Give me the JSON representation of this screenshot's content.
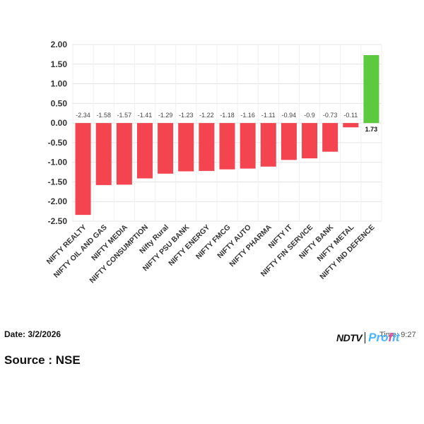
{
  "chart_data": {
    "type": "bar",
    "categories": [
      "NIFTY REALTY",
      "NIFTY OIL AND GAS",
      "NIFTY MEDIA",
      "NIFTY CONSUMPTION",
      "Nifty Rural",
      "NIFTY PSU BANK",
      "NIFTY ENERGY",
      "NIFTY FMCG",
      "NIFTY AUTO",
      "NIFTY PHARMA",
      "NIFTY IT",
      "NIFTY FIN SERVICE",
      "NIFTY BANK",
      "NIFTY METAL",
      "NIFTY IND DEFENCE"
    ],
    "values": [
      -2.34,
      -1.58,
      -1.57,
      -1.41,
      -1.29,
      -1.23,
      -1.22,
      -1.18,
      -1.16,
      -1.11,
      -0.94,
      -0.9,
      -0.73,
      -0.11,
      1.73
    ],
    "data_labels": [
      "-2.34",
      "-1.58",
      "-1.57",
      "-1.41",
      "-1.29",
      "-1.23",
      "-1.22",
      "-1.18",
      "-1.16",
      "-1.11",
      "-0.94",
      "-0.9",
      "-0.73",
      "-0.11",
      "1.73"
    ],
    "yticks": [
      "2.00",
      "1.50",
      "1.00",
      "0.50",
      "0.00",
      "-0.50",
      "-1.00",
      "-1.50",
      "-2.00",
      "-2.50"
    ],
    "ylim": [
      -2.5,
      2.0
    ],
    "grid": true,
    "colors": {
      "negative": "#f4444f",
      "positive": "#5cc93e"
    }
  },
  "footer": {
    "date": "Date: 3/2/2026",
    "source": "Source : NSE",
    "time": "Time: 9:27"
  },
  "brand": {
    "ndtv": "NDTV",
    "profit_pre": "Pro",
    "profit_f": "f",
    "profit_post": "it"
  }
}
